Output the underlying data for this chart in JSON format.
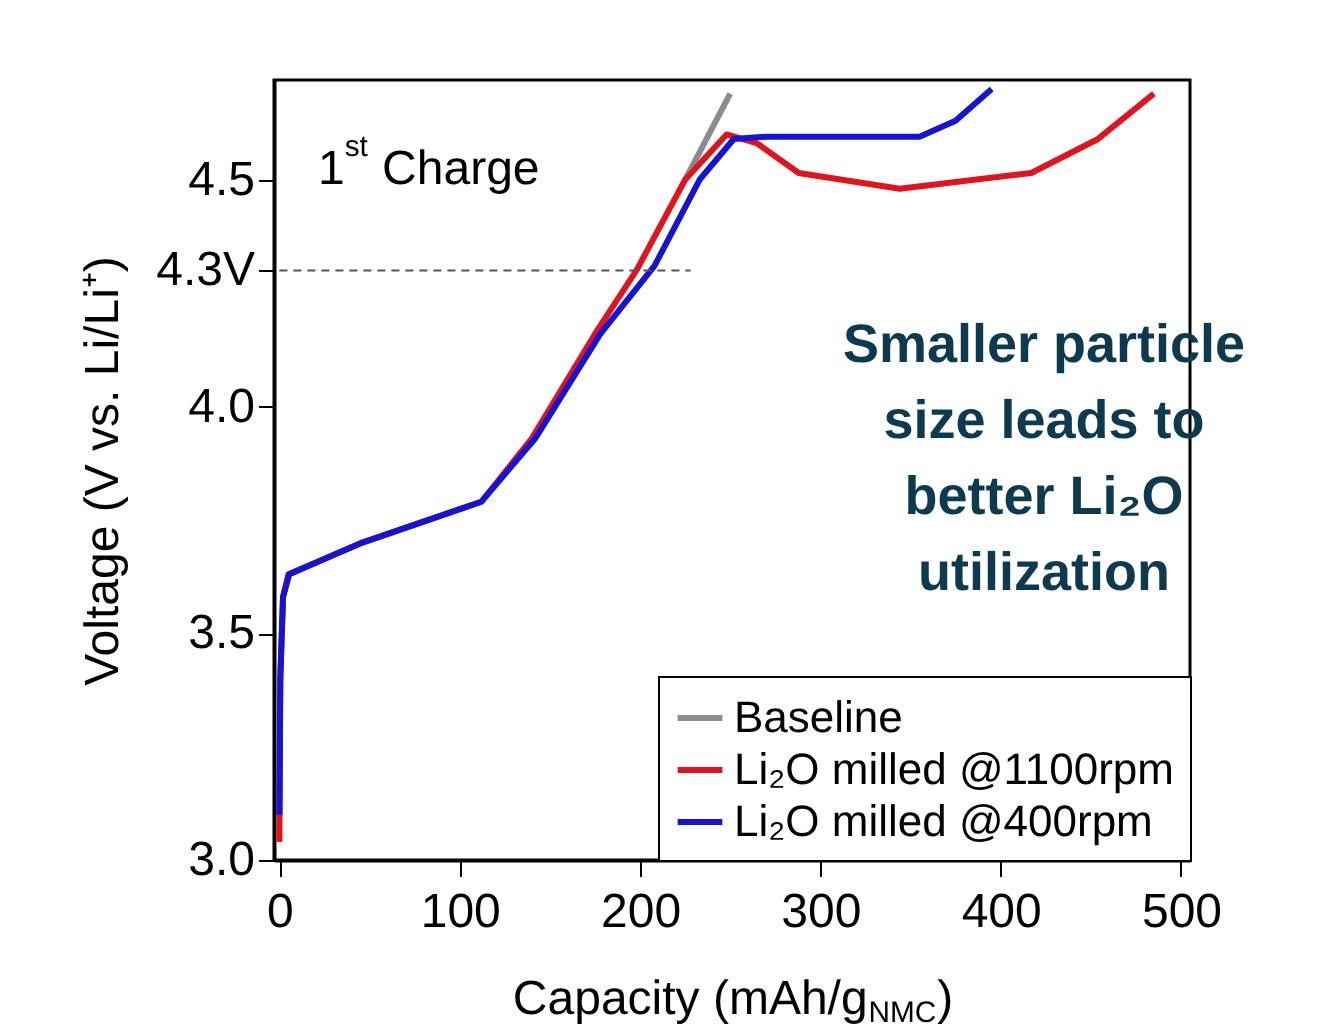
{
  "chart_data": {
    "type": "line",
    "xlabel": "Capacity (mAh/g$_{NMC}$)",
    "ylabel": "Voltage (V vs. Li/Li⁺)",
    "xlim": [
      -3,
      505
    ],
    "ylim": [
      3.0,
      4.72
    ],
    "xticks": [
      0,
      100,
      200,
      300,
      400,
      500
    ],
    "yticks": [
      {
        "value": 3.0,
        "label": "3.0"
      },
      3.5,
      {
        "value": 4.0,
        "label": "4.0"
      },
      {
        "value": 4.3,
        "label": "4.3V"
      },
      4.5
    ],
    "legend": "bottom right",
    "grid": false,
    "line_style": "solid",
    "marker": "none",
    "annotations": [
      "1$^{st}$ Charge",
      "Smaller particle size leads to better Li₂O utilization"
    ],
    "series": [
      {
        "name": "Baseline",
        "color": "#8c8c8c",
        "x": [
          225,
          250
        ],
        "values": [
          4.5,
          4.69
        ]
      },
      {
        "name": "Li₂O milled @1100rpm",
        "color": "#e0141e",
        "x": [
          0,
          0.5,
          2,
          5,
          46,
          112,
          140,
          175,
          198,
          225,
          248,
          265,
          288,
          344,
          417,
          454,
          485
        ],
        "values": [
          3.04,
          3.4,
          3.58,
          3.63,
          3.7,
          3.79,
          3.93,
          4.16,
          4.3,
          4.5,
          4.6,
          4.58,
          4.515,
          4.48,
          4.515,
          4.59,
          4.69
        ]
      },
      {
        "name": "Li₂O milled @400rpm",
        "color": "#1414d2",
        "x": [
          0,
          0.5,
          2,
          5.5,
          46,
          112,
          142,
          178,
          208,
          233,
          252,
          270,
          355,
          375,
          395
        ],
        "values": [
          3.1,
          3.4,
          3.58,
          3.63,
          3.7,
          3.79,
          3.93,
          4.16,
          4.31,
          4.5,
          4.59,
          4.595,
          4.595,
          4.63,
          4.7
        ]
      },
      {
        "type": "line",
        "line_style": "dashed",
        "color": "#555555",
        "x": [
          0,
          228
        ],
        "values": [
          4.3,
          4.3
        ]
      }
    ]
  }
}
